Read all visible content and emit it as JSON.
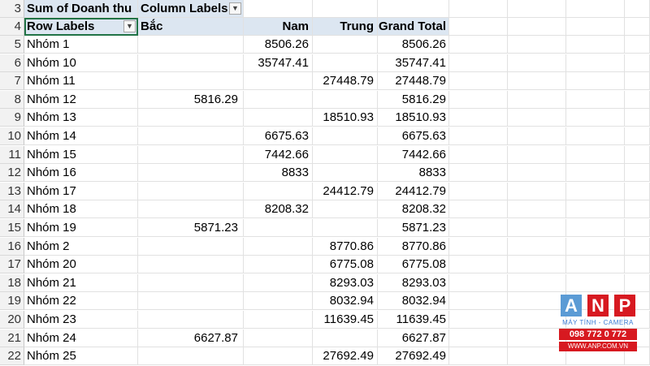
{
  "pivot": {
    "value_field": "Sum of Doanh thu",
    "column_labels": "Column Labels",
    "row_labels_header": "Row Labels",
    "columns": [
      "Bắc",
      "Nam",
      "Trung",
      "Grand Total"
    ],
    "row_numbers": [
      "3",
      "4",
      "5",
      "6",
      "7",
      "8",
      "9",
      "10",
      "11",
      "12",
      "13",
      "14",
      "15",
      "16",
      "17",
      "18",
      "19",
      "20",
      "21",
      "22"
    ],
    "rows": [
      {
        "label": "Nhóm 1",
        "bac": "",
        "nam": "8506.26",
        "trung": "",
        "total": "8506.26"
      },
      {
        "label": "Nhóm 10",
        "bac": "",
        "nam": "35747.41",
        "trung": "",
        "total": "35747.41"
      },
      {
        "label": "Nhóm 11",
        "bac": "",
        "nam": "",
        "trung": "27448.79",
        "total": "27448.79"
      },
      {
        "label": "Nhóm 12",
        "bac": "5816.29",
        "nam": "",
        "trung": "",
        "total": "5816.29"
      },
      {
        "label": "Nhóm 13",
        "bac": "",
        "nam": "",
        "trung": "18510.93",
        "total": "18510.93"
      },
      {
        "label": "Nhóm 14",
        "bac": "",
        "nam": "6675.63",
        "trung": "",
        "total": "6675.63"
      },
      {
        "label": "Nhóm 15",
        "bac": "",
        "nam": "7442.66",
        "trung": "",
        "total": "7442.66"
      },
      {
        "label": "Nhóm 16",
        "bac": "",
        "nam": "8833",
        "trung": "",
        "total": "8833"
      },
      {
        "label": "Nhóm 17",
        "bac": "",
        "nam": "",
        "trung": "24412.79",
        "total": "24412.79"
      },
      {
        "label": "Nhóm 18",
        "bac": "",
        "nam": "8208.32",
        "trung": "",
        "total": "8208.32"
      },
      {
        "label": "Nhóm 19",
        "bac": "5871.23",
        "nam": "",
        "trung": "",
        "total": "5871.23"
      },
      {
        "label": "Nhóm 2",
        "bac": "",
        "nam": "",
        "trung": "8770.86",
        "total": "8770.86"
      },
      {
        "label": "Nhóm 20",
        "bac": "",
        "nam": "",
        "trung": "6775.08",
        "total": "6775.08"
      },
      {
        "label": "Nhóm 21",
        "bac": "",
        "nam": "",
        "trung": "8293.03",
        "total": "8293.03"
      },
      {
        "label": "Nhóm 22",
        "bac": "",
        "nam": "",
        "trung": "8032.94",
        "total": "8032.94"
      },
      {
        "label": "Nhóm 23",
        "bac": "",
        "nam": "",
        "trung": "11639.45",
        "total": "11639.45"
      },
      {
        "label": "Nhóm 24",
        "bac": "6627.87",
        "nam": "",
        "trung": "",
        "total": "6627.87"
      },
      {
        "label": "Nhóm 25",
        "bac": "",
        "nam": "",
        "trung": "27692.49",
        "total": "27692.49"
      }
    ]
  },
  "watermark": {
    "letters": [
      "A",
      "N",
      "P"
    ],
    "letter_colors": [
      "#5b9bd5",
      "#d71920",
      "#d71920"
    ],
    "tagline": "MÁY TÍNH - CAMERA",
    "phone": "098 772 0 772",
    "website": "WWW.ANP.COM.VN"
  },
  "colors": {
    "header_fill": "#dce6f1",
    "selection": "#217346",
    "rownum_bg": "#f2f2f2"
  }
}
